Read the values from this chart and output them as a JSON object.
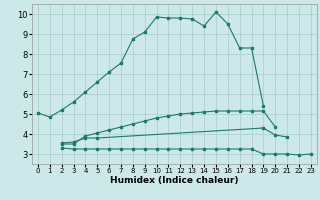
{
  "xlabel": "Humidex (Indice chaleur)",
  "bg_color": "#cce8e8",
  "grid_color": "#aacccc",
  "line_color": "#1a7a6e",
  "xlim": [
    -0.5,
    23.5
  ],
  "ylim": [
    2.5,
    10.5
  ],
  "xticks": [
    0,
    1,
    2,
    3,
    4,
    5,
    6,
    7,
    8,
    9,
    10,
    11,
    12,
    13,
    14,
    15,
    16,
    17,
    18,
    19,
    20,
    21,
    22,
    23
  ],
  "yticks": [
    3,
    4,
    5,
    6,
    7,
    8,
    9,
    10
  ],
  "line1_x": [
    0,
    1,
    2,
    3,
    4,
    5,
    6,
    7,
    8,
    9,
    10,
    11,
    12,
    13,
    14,
    15,
    16,
    17,
    18,
    19
  ],
  "line1_y": [
    5.05,
    4.85,
    5.2,
    5.6,
    6.1,
    6.6,
    7.1,
    7.55,
    8.75,
    9.1,
    9.85,
    9.8,
    9.8,
    9.75,
    9.4,
    10.1,
    9.5,
    8.3,
    8.3,
    5.4
  ],
  "line2_x": [
    2,
    3,
    4,
    5,
    6,
    7,
    8,
    9,
    10,
    11,
    12,
    13,
    14,
    15,
    16,
    17,
    18,
    19,
    20
  ],
  "line2_y": [
    3.5,
    3.5,
    3.9,
    4.05,
    4.2,
    4.35,
    4.5,
    4.65,
    4.8,
    4.9,
    5.0,
    5.05,
    5.1,
    5.15,
    5.15,
    5.15,
    5.15,
    5.15,
    4.35
  ],
  "line3_x": [
    2,
    3,
    4,
    5,
    6,
    7,
    8,
    9,
    10,
    11,
    12,
    13,
    14,
    15,
    16,
    17,
    18,
    19,
    20,
    21,
    22,
    23
  ],
  "line3_y": [
    3.3,
    3.25,
    3.25,
    3.25,
    3.25,
    3.25,
    3.25,
    3.25,
    3.25,
    3.25,
    3.25,
    3.25,
    3.25,
    3.25,
    3.25,
    3.25,
    3.25,
    3.0,
    3.0,
    3.0,
    2.95,
    3.0
  ],
  "line4_x": [
    2,
    3,
    4,
    5,
    19,
    20,
    21
  ],
  "line4_y": [
    3.55,
    3.6,
    3.8,
    3.8,
    4.3,
    3.95,
    3.85
  ]
}
